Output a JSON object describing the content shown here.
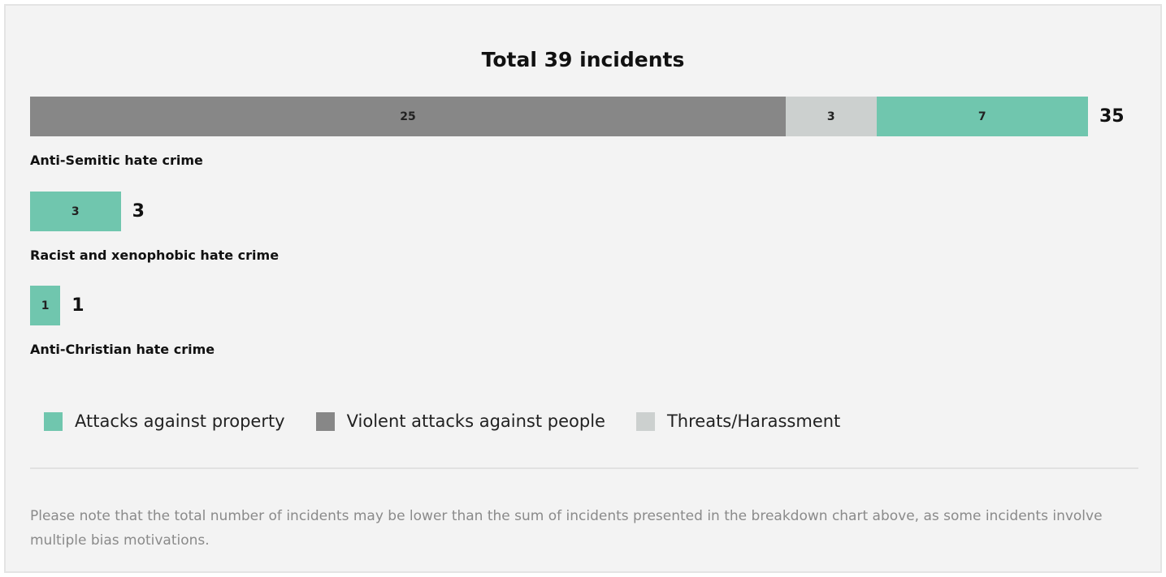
{
  "chart_data": {
    "type": "bar",
    "orientation": "horizontal",
    "stacked": true,
    "title": "Total 39 incidents",
    "categories": [
      "Anti-Semitic hate crime",
      "Racist and xenophobic hate crime",
      "Anti-Christian hate crime"
    ],
    "series": [
      {
        "name": "Violent attacks against people",
        "color": "#878787",
        "values": [
          25,
          0,
          0
        ]
      },
      {
        "name": "Threats/Harassment",
        "color": "#ccd0cf",
        "values": [
          3,
          0,
          0
        ]
      },
      {
        "name": "Attacks against property",
        "color": "#70c6ae",
        "values": [
          7,
          3,
          1
        ]
      }
    ],
    "totals": [
      35,
      3,
      1
    ],
    "legend": [
      {
        "name": "Attacks against property",
        "color": "#70c6ae"
      },
      {
        "name": "Violent attacks against people",
        "color": "#878787"
      },
      {
        "name": "Threats/Harassment",
        "color": "#ccd0cf"
      }
    ],
    "legend_position": "bottom-left",
    "grid": false
  },
  "note": "Please note that the total number of incidents may be lower than the sum of incidents presented in the breakdown chart above, as some incidents involve multiple bias motivations."
}
